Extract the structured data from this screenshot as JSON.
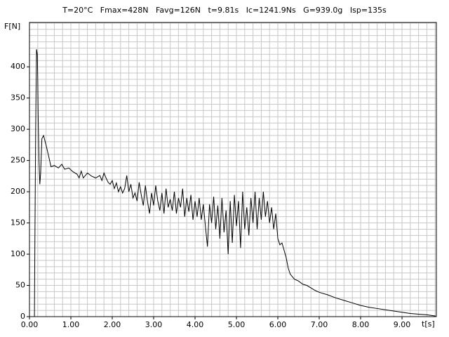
{
  "chart_data": {
    "type": "line",
    "title": "T=20°C   Fmax=428N   Favg=126N   t=9.81s   Ic=1241.9Ns   G=939.0g   Isp=135s",
    "y_label": "F[N]",
    "x_label": "t[s]",
    "xlim": [
      0,
      9.83
    ],
    "ylim": [
      0,
      471
    ],
    "xticks": [
      {
        "value": 0,
        "label": "0.00"
      },
      {
        "value": 1,
        "label": "1.00"
      },
      {
        "value": 2,
        "label": "2.00"
      },
      {
        "value": 3,
        "label": "3.00"
      },
      {
        "value": 4,
        "label": "4.00"
      },
      {
        "value": 5,
        "label": "5.00"
      },
      {
        "value": 6,
        "label": "6.00"
      },
      {
        "value": 7,
        "label": "7.00"
      },
      {
        "value": 8,
        "label": "8.00"
      },
      {
        "value": 9,
        "label": "9.00"
      }
    ],
    "yticks": [
      0,
      50,
      100,
      150,
      200,
      250,
      300,
      350,
      400
    ],
    "xgrid": [
      0.2,
      0.4,
      0.6,
      0.8,
      1,
      1.2,
      1.4,
      1.6,
      1.8,
      2,
      2.2,
      2.4,
      2.6,
      2.8,
      3,
      3.2,
      3.4,
      3.6,
      3.8,
      4,
      4.2,
      4.4,
      4.6,
      4.8,
      5,
      5.2,
      5.4,
      5.6,
      5.8,
      6,
      6.2,
      6.4,
      6.6,
      6.8,
      7,
      7.2,
      7.4,
      7.6,
      7.8,
      8,
      8.2,
      8.4,
      8.6,
      8.8,
      9,
      9.2,
      9.4,
      9.6,
      9.8
    ],
    "ygrid": [
      10,
      20,
      30,
      40,
      50,
      60,
      70,
      80,
      90,
      100,
      110,
      120,
      130,
      140,
      150,
      160,
      170,
      180,
      190,
      200,
      210,
      220,
      230,
      240,
      250,
      260,
      270,
      280,
      290,
      300,
      310,
      320,
      330,
      340,
      350,
      360,
      370,
      380,
      390,
      400,
      410,
      420,
      430,
      440,
      450,
      460,
      470
    ],
    "grid_color": "#c8c8c8",
    "color": "#000000",
    "x": [
      0.12,
      0.13,
      0.15,
      0.17,
      0.19,
      0.2,
      0.21,
      0.23,
      0.25,
      0.27,
      0.3,
      0.34,
      0.4,
      0.47,
      0.52,
      0.6,
      0.7,
      0.78,
      0.85,
      0.95,
      1.05,
      1.15,
      1.2,
      1.25,
      1.3,
      1.4,
      1.5,
      1.6,
      1.7,
      1.75,
      1.8,
      1.85,
      1.9,
      1.95,
      2.0,
      2.05,
      2.1,
      2.15,
      2.2,
      2.25,
      2.3,
      2.35,
      2.4,
      2.45,
      2.5,
      2.55,
      2.6,
      2.65,
      2.7,
      2.75,
      2.8,
      2.85,
      2.9,
      2.95,
      3.0,
      3.05,
      3.1,
      3.15,
      3.2,
      3.25,
      3.3,
      3.35,
      3.4,
      3.45,
      3.5,
      3.55,
      3.6,
      3.65,
      3.7,
      3.75,
      3.8,
      3.85,
      3.9,
      3.95,
      4.0,
      4.05,
      4.1,
      4.15,
      4.2,
      4.25,
      4.3,
      4.35,
      4.4,
      4.45,
      4.5,
      4.55,
      4.6,
      4.65,
      4.7,
      4.75,
      4.8,
      4.85,
      4.9,
      4.95,
      5.0,
      5.05,
      5.1,
      5.15,
      5.2,
      5.25,
      5.3,
      5.35,
      5.4,
      5.45,
      5.5,
      5.55,
      5.6,
      5.65,
      5.7,
      5.75,
      5.8,
      5.85,
      5.9,
      5.95,
      6.0,
      6.05,
      6.1,
      6.2,
      6.25,
      6.3,
      6.4,
      6.5,
      6.6,
      6.7,
      6.8,
      6.9,
      7.0,
      7.2,
      7.4,
      7.6,
      7.8,
      8.0,
      8.2,
      8.4,
      8.6,
      8.8,
      9.0,
      9.2,
      9.4,
      9.6,
      9.81
    ],
    "values": [
      0,
      110,
      300,
      428,
      420,
      380,
      320,
      250,
      212,
      230,
      285,
      290,
      275,
      255,
      240,
      242,
      238,
      244,
      236,
      238,
      232,
      228,
      222,
      233,
      222,
      230,
      225,
      222,
      226,
      218,
      230,
      222,
      215,
      212,
      218,
      205,
      214,
      200,
      208,
      198,
      205,
      226,
      200,
      212,
      190,
      198,
      185,
      215,
      195,
      178,
      210,
      185,
      165,
      198,
      178,
      210,
      185,
      170,
      198,
      165,
      205,
      175,
      188,
      170,
      200,
      165,
      190,
      175,
      205,
      160,
      190,
      168,
      195,
      155,
      185,
      160,
      190,
      155,
      180,
      145,
      112,
      180,
      150,
      192,
      140,
      178,
      125,
      190,
      135,
      170,
      100,
      185,
      118,
      195,
      145,
      185,
      110,
      200,
      140,
      175,
      130,
      190,
      150,
      200,
      140,
      190,
      155,
      200,
      160,
      185,
      150,
      175,
      140,
      165,
      125,
      115,
      118,
      95,
      78,
      68,
      60,
      57,
      52,
      50,
      46,
      42,
      39,
      35,
      30,
      26,
      22,
      18,
      15,
      13,
      11,
      9,
      7,
      5,
      4,
      3,
      1
    ]
  }
}
